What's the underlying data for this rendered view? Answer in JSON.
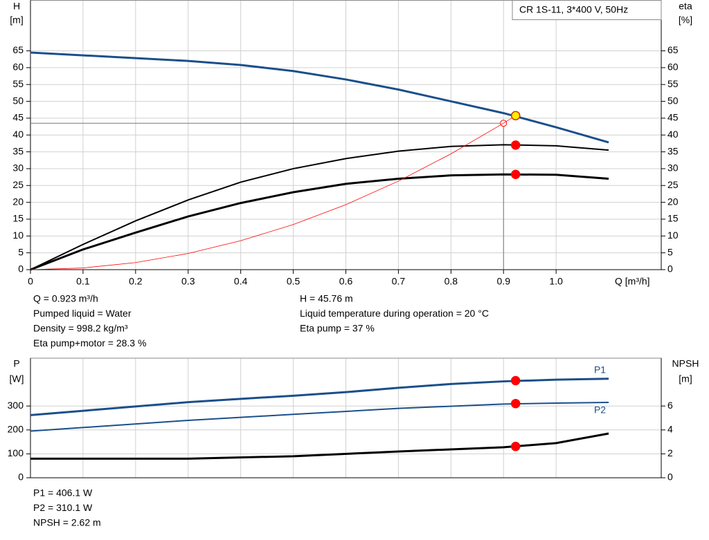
{
  "chart_data": [
    {
      "type": "line",
      "title": "CR 1S-11, 3*400 V, 50Hz",
      "ylabel": "H",
      "yunit": "[m]",
      "y2label": "eta",
      "y2unit": "[%]",
      "xlabel": "Q [m³/h]",
      "xlim": [
        0,
        1.2
      ],
      "xticks": [
        0,
        0.1,
        0.2,
        0.3,
        0.4,
        0.5,
        0.6,
        0.7,
        0.8,
        0.9,
        {
          "value": 1,
          "label": "1.0"
        }
      ],
      "ylim": [
        0,
        80
      ],
      "yticks": [
        0,
        5,
        10,
        15,
        20,
        25,
        30,
        35,
        40,
        45,
        50,
        55,
        60,
        65
      ],
      "y2lim": [
        0,
        80
      ],
      "y2ticks": [
        0,
        5,
        10,
        15,
        20,
        25,
        30,
        35,
        40,
        45,
        50,
        55,
        60,
        65
      ],
      "grid": true,
      "series": [
        {
          "color": "#1a4f8b",
          "line_width": 3,
          "x": [
            0,
            0.3,
            0.4,
            0.5,
            0.6,
            0.7,
            0.8,
            0.9,
            1.0,
            1.1
          ],
          "values": [
            64.5,
            62,
            60.8,
            59,
            56.5,
            53.5,
            50,
            46.5,
            42.3,
            37.8
          ]
        },
        {
          "color": "#000000",
          "line_width": 2,
          "axis": "y2",
          "x": [
            0,
            0.1,
            0.2,
            0.3,
            0.4,
            0.5,
            0.6,
            0.7,
            0.8,
            0.9,
            1.0,
            1.1
          ],
          "values": [
            0,
            7.5,
            14.5,
            20.7,
            26,
            30,
            33,
            35.2,
            36.6,
            37.1,
            36.8,
            35.5
          ]
        },
        {
          "color": "#000000",
          "line_width": 3,
          "axis": "y2",
          "x": [
            0,
            0.1,
            0.2,
            0.3,
            0.4,
            0.5,
            0.6,
            0.7,
            0.8,
            0.9,
            1.0,
            1.1
          ],
          "values": [
            0,
            6,
            11,
            15.8,
            19.8,
            23,
            25.5,
            27,
            28,
            28.3,
            28.2,
            27
          ]
        },
        {
          "color": "#ff0000",
          "line_width": 0.8,
          "x": [
            0,
            0.1,
            0.2,
            0.3,
            0.4,
            0.5,
            0.6,
            0.7,
            0.8,
            0.9,
            0.923
          ],
          "values": [
            0,
            0.5,
            2.1,
            4.8,
            8.6,
            13.4,
            19.3,
            26.3,
            34.4,
            43.5,
            45.76
          ]
        }
      ],
      "crosshair": {
        "x": 0.9,
        "y": 43.5
      },
      "markers": [
        {
          "x": 0.923,
          "y": 45.76,
          "color": "#ffee00"
        },
        {
          "x": 0.923,
          "y": 37,
          "color": "#ff0000",
          "axis": "y2"
        },
        {
          "x": 0.923,
          "y": 28.3,
          "color": "#ff0000",
          "axis": "y2"
        }
      ],
      "info_left": [
        "Q = 0.923 m³/h",
        "Pumped liquid = Water",
        "Density = 998.2 kg/m³",
        "Eta pump+motor = 28.3 %"
      ],
      "info_right": [
        "H = 45.76 m",
        "Liquid temperature during operation = 20 °C",
        "Eta pump = 37 %"
      ]
    },
    {
      "type": "line",
      "ylabel": "P",
      "yunit": "[W]",
      "y2label": "NPSH",
      "y2unit": "[m]",
      "xlim": [
        0,
        1.2
      ],
      "ylim": [
        0,
        500
      ],
      "yticks": [
        0,
        100,
        200,
        300
      ],
      "y2lim": [
        0,
        10
      ],
      "y2ticks": [
        0,
        2,
        4,
        6
      ],
      "grid": true,
      "series": [
        {
          "name": "P1",
          "color": "#1a4f8b",
          "line_width": 3,
          "x": [
            0,
            0.3,
            0.4,
            0.5,
            0.6,
            0.7,
            0.8,
            0.9,
            1.0,
            1.1
          ],
          "values": [
            262,
            316,
            330,
            343,
            358,
            376,
            392,
            403,
            410,
            414
          ]
        },
        {
          "name": "P2",
          "color": "#1a4f8b",
          "line_width": 2,
          "x": [
            0,
            0.3,
            0.5,
            0.7,
            0.9,
            1.0,
            1.1
          ],
          "values": [
            195,
            240,
            265,
            290,
            308,
            312,
            315
          ]
        },
        {
          "color": "#000000",
          "line_width": 3,
          "axis": "y2",
          "x": [
            0,
            0.3,
            0.5,
            0.7,
            0.9,
            1.0,
            1.1
          ],
          "values": [
            1.6,
            1.6,
            1.8,
            2.2,
            2.55,
            2.9,
            3.7
          ]
        }
      ],
      "markers": [
        {
          "x": 0.923,
          "y": 406.1,
          "color": "#ff0000"
        },
        {
          "x": 0.923,
          "y": 310.1,
          "color": "#ff0000"
        },
        {
          "x": 0.923,
          "y": 2.62,
          "color": "#ff0000",
          "axis": "y2"
        }
      ],
      "info_left": [
        "P1 = 406.1 W",
        "P2 = 310.1 W",
        "NPSH = 2.62 m"
      ]
    }
  ]
}
